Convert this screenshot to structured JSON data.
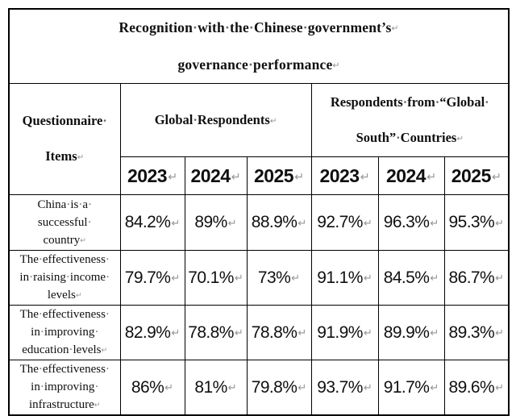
{
  "title": {
    "lines": [
      "Recognition·with·the·Chinese·government’s↵",
      "governance·performance↵"
    ]
  },
  "table": {
    "row_header": {
      "lines": [
        "Questionnaire·",
        "Items↵"
      ]
    },
    "groups": [
      {
        "label_lines": [
          "Global·Respondents↵"
        ]
      },
      {
        "label_lines": [
          "Respondents·from·“Global·",
          "South”·Countries↵"
        ]
      }
    ],
    "years": [
      "2023↵",
      "2024↵",
      "2025↵",
      "2023↵",
      "2024↵",
      "2025↵"
    ],
    "rows": [
      {
        "label_lines": [
          "China·is·a·",
          "successful·",
          "country↵"
        ],
        "values": [
          "84.2%↵",
          "89%↵",
          "88.9%↵",
          "92.7%↵",
          "96.3%↵",
          "95.3%↵"
        ]
      },
      {
        "label_lines": [
          "The·effectiveness·",
          "in·raising·income·",
          "levels↵"
        ],
        "values": [
          "79.7%↵",
          "70.1%↵",
          "73%↵",
          "91.1%↵",
          "84.5%↵",
          "86.7%↵"
        ]
      },
      {
        "label_lines": [
          "The·effectiveness·",
          "in·improving·",
          "education·levels↵"
        ],
        "values": [
          "82.9%↵",
          "78.8%↵",
          "78.8%↵",
          "91.9%↵",
          "89.9%↵",
          "89.3%↵"
        ]
      },
      {
        "label_lines": [
          "The·effectiveness·",
          "in·improving·",
          "infrastructure↵"
        ],
        "values": [
          "86%↵",
          "81%↵",
          "79.8%↵",
          "93.7%↵",
          "91.7%↵",
          "89.6%↵"
        ]
      }
    ]
  },
  "colors": {
    "text": "#101010",
    "formatting_mark_gray": "#949494",
    "border": "#000000",
    "background": "#ffffff"
  }
}
